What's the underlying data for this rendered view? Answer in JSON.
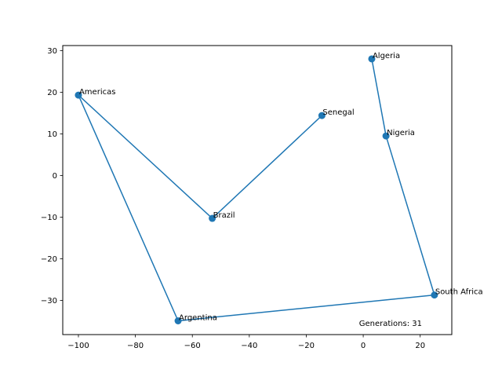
{
  "chart_data": {
    "type": "line",
    "title": "",
    "xlabel": "",
    "ylabel": "",
    "xlim": [
      -105.5,
      31.1
    ],
    "ylim": [
      -38.2,
      31.2
    ],
    "x_ticks": [
      -100,
      -80,
      -60,
      -40,
      -20,
      0,
      20
    ],
    "y_ticks": [
      -30,
      -20,
      -10,
      0,
      10,
      20,
      30
    ],
    "x_tick_labels": [
      "−100",
      "−80",
      "−60",
      "−40",
      "−20",
      "0",
      "20"
    ],
    "y_tick_labels": [
      "−30",
      "−20",
      "−10",
      "0",
      "10",
      "20",
      "30"
    ],
    "grid": false,
    "series": [
      {
        "points": [
          {
            "label": "Algeria",
            "x": 3,
            "y": 28
          },
          {
            "label": "Nigeria",
            "x": 8,
            "y": 9.5
          },
          {
            "label": "South Africa",
            "x": 25,
            "y": -28.7
          },
          {
            "label": "Argentina",
            "x": -65,
            "y": -34.9
          },
          {
            "label": "Americas",
            "x": -100,
            "y": 19.3
          },
          {
            "label": "Brazil",
            "x": -53,
            "y": -10.3
          },
          {
            "label": "Senegal",
            "x": -14.5,
            "y": 14.4
          }
        ],
        "color": "#1f77b4"
      }
    ],
    "annotation": "Generations: 31"
  }
}
